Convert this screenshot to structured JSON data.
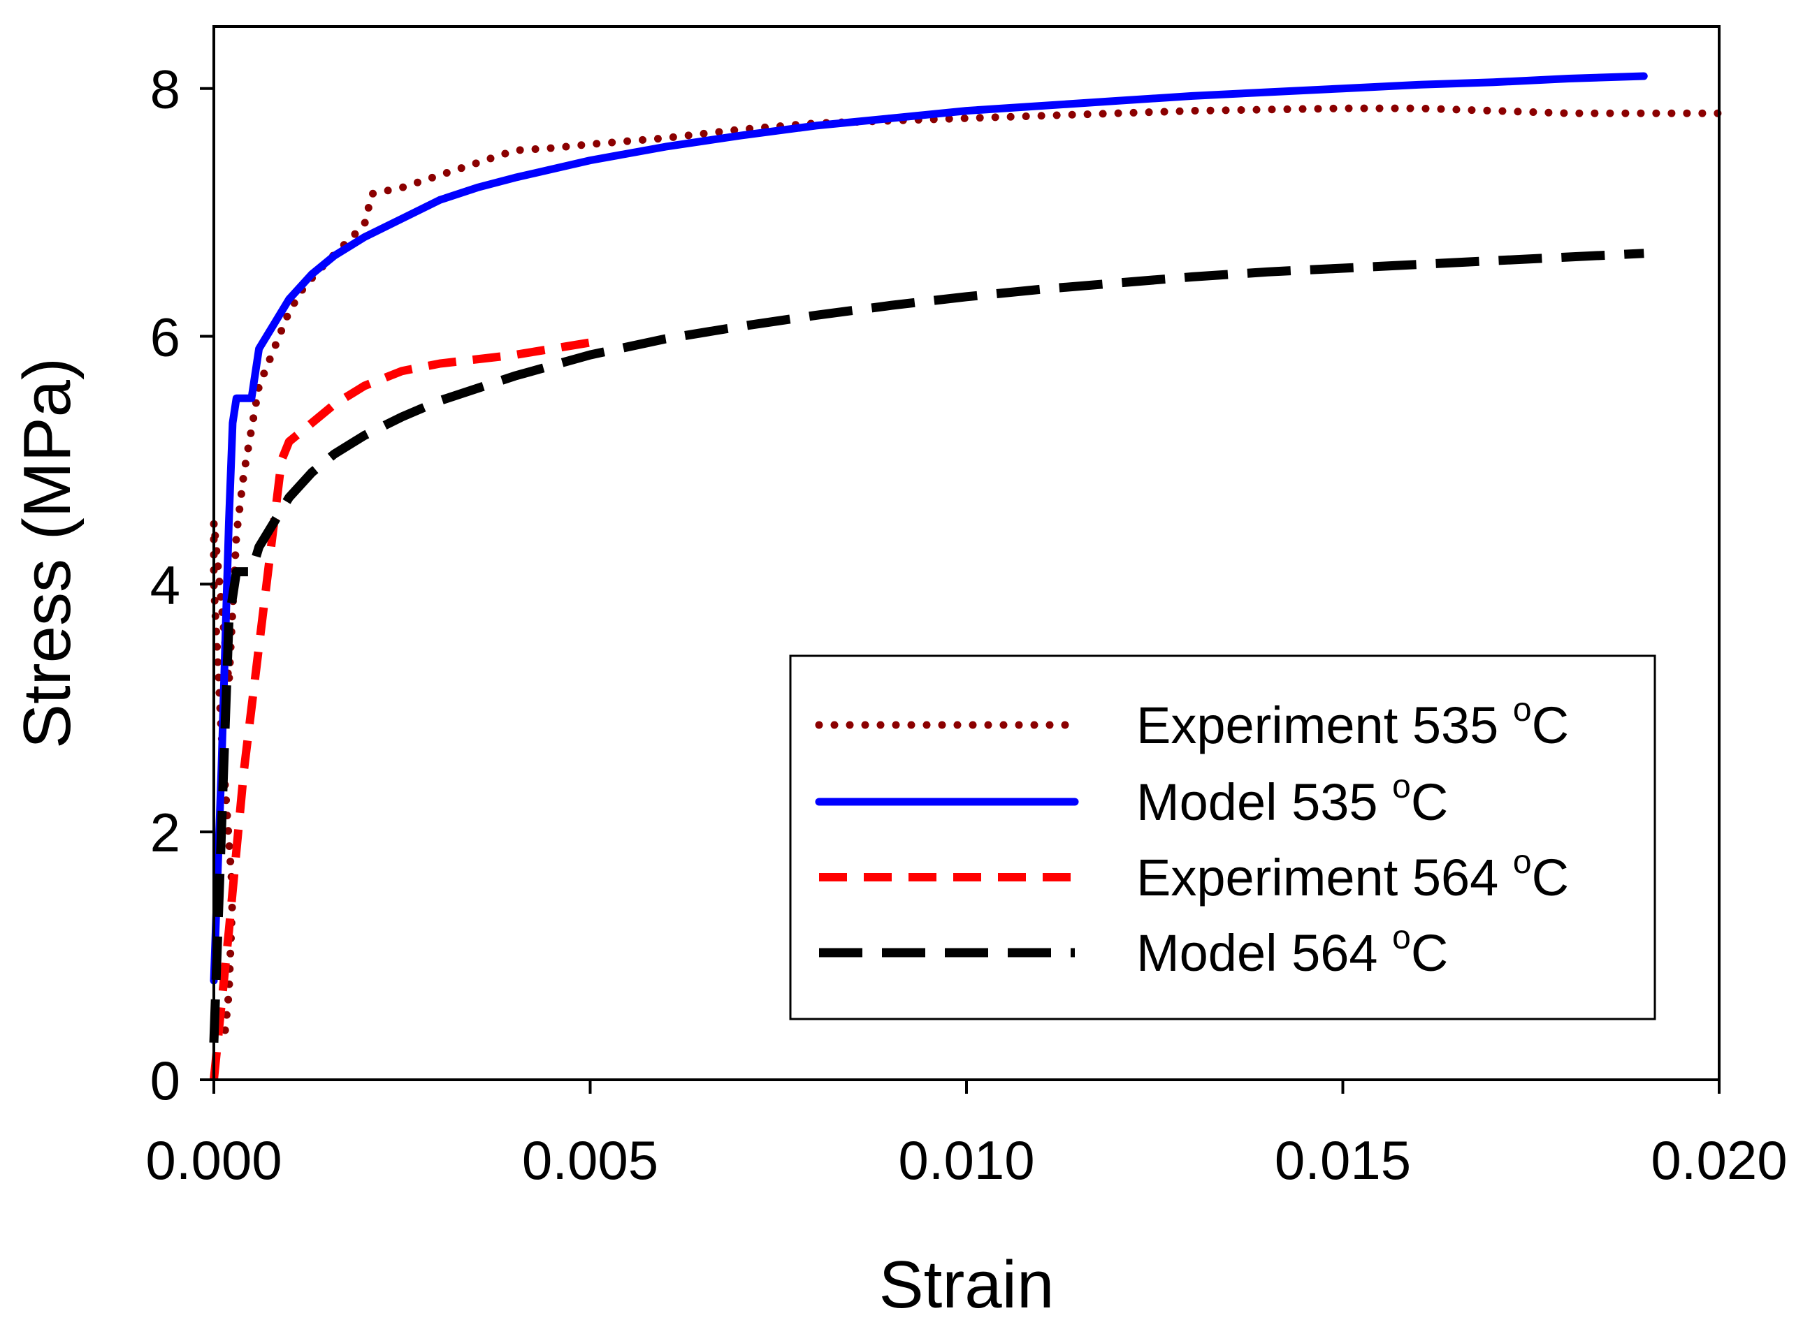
{
  "chart_data": {
    "type": "line",
    "title": "",
    "xlabel": "Strain",
    "ylabel": "Stress (MPa)",
    "xlim": [
      0,
      0.02
    ],
    "ylim": [
      0,
      8.5
    ],
    "xticks": [
      0,
      0.005,
      0.01,
      0.015,
      0.02
    ],
    "xtick_labels": [
      "0.000",
      "0.005",
      "0.010",
      "0.015",
      "0.020"
    ],
    "yticks": [
      0,
      2,
      4,
      6,
      8
    ],
    "ytick_labels": [
      "0",
      "2",
      "4",
      "6",
      "8"
    ],
    "grid": false,
    "legend_position": "bottom-right",
    "series": [
      {
        "name": "Experiment 535",
        "legend_label": "Experiment 535 ",
        "unit_sup": "o",
        "unit": "C",
        "color": "#8b0000",
        "style": "dotted",
        "x": [
          0.00015,
          0.0002,
          0.00025,
          0.0001,
          0.0,
          0.0,
          0.0002,
          0.0003,
          0.0004,
          0.0006,
          0.0008,
          0.001,
          0.0012,
          0.0015,
          0.002,
          0.0021,
          0.0025,
          0.003,
          0.0035,
          0.004,
          0.0045,
          0.005,
          0.006,
          0.007,
          0.008,
          0.009,
          0.01,
          0.011,
          0.012,
          0.013,
          0.014,
          0.015,
          0.016,
          0.017,
          0.018,
          0.019,
          0.02
        ],
        "y": [
          0.4,
          0.7,
          1.5,
          2.8,
          4.0,
          4.5,
          3.2,
          4.4,
          4.9,
          5.6,
          5.9,
          6.2,
          6.4,
          6.6,
          6.9,
          7.15,
          7.2,
          7.3,
          7.4,
          7.5,
          7.52,
          7.55,
          7.6,
          7.67,
          7.72,
          7.74,
          7.76,
          7.78,
          7.8,
          7.82,
          7.83,
          7.84,
          7.84,
          7.82,
          7.8,
          7.8,
          7.8
        ]
      },
      {
        "name": "Model 535",
        "legend_label": "Model 535 ",
        "unit_sup": "o",
        "unit": "C",
        "color": "#0000ff",
        "style": "solid",
        "x": [
          0.0,
          0.0001,
          0.0002,
          0.00025,
          0.0003,
          0.0004,
          0.0005,
          0.0006,
          0.0008,
          0.001,
          0.0013,
          0.0016,
          0.002,
          0.0025,
          0.003,
          0.0035,
          0.004,
          0.005,
          0.006,
          0.007,
          0.008,
          0.009,
          0.01,
          0.011,
          0.012,
          0.013,
          0.014,
          0.015,
          0.016,
          0.017,
          0.018,
          0.019
        ],
        "y": [
          0.8,
          2.5,
          4.5,
          5.3,
          5.5,
          5.5,
          5.5,
          5.9,
          6.1,
          6.3,
          6.5,
          6.65,
          6.8,
          6.95,
          7.1,
          7.2,
          7.28,
          7.42,
          7.53,
          7.62,
          7.7,
          7.76,
          7.82,
          7.86,
          7.9,
          7.94,
          7.97,
          8.0,
          8.03,
          8.05,
          8.08,
          8.1
        ]
      },
      {
        "name": "Experiment 564",
        "legend_label": "Experiment 564 ",
        "unit_sup": "o",
        "unit": "C",
        "color": "#ff0000",
        "style": "dashed",
        "x": [
          0.0,
          0.0002,
          0.0004,
          0.0006,
          0.0008,
          0.0009,
          0.001,
          0.0013,
          0.0016,
          0.002,
          0.0025,
          0.003,
          0.004,
          0.005
        ],
        "y": [
          0.0,
          1.2,
          2.5,
          3.5,
          4.5,
          5.0,
          5.15,
          5.3,
          5.45,
          5.6,
          5.72,
          5.78,
          5.85,
          5.95
        ]
      },
      {
        "name": "Model 564",
        "legend_label": "Model 564 ",
        "unit_sup": "o",
        "unit": "C",
        "color": "#000000",
        "style": "longdash",
        "x": [
          0.0,
          0.0001,
          0.0002,
          0.0003,
          0.0004,
          0.0005,
          0.0006,
          0.0008,
          0.001,
          0.0013,
          0.0016,
          0.002,
          0.0025,
          0.003,
          0.004,
          0.005,
          0.006,
          0.007,
          0.008,
          0.009,
          0.01,
          0.011,
          0.012,
          0.013,
          0.014,
          0.015,
          0.016,
          0.017,
          0.018,
          0.019
        ],
        "y": [
          0.3,
          2.0,
          3.7,
          4.1,
          4.1,
          4.1,
          4.3,
          4.5,
          4.7,
          4.9,
          5.05,
          5.2,
          5.35,
          5.48,
          5.68,
          5.85,
          5.98,
          6.08,
          6.17,
          6.25,
          6.32,
          6.38,
          6.43,
          6.48,
          6.52,
          6.55,
          6.58,
          6.61,
          6.64,
          6.67
        ]
      }
    ]
  }
}
